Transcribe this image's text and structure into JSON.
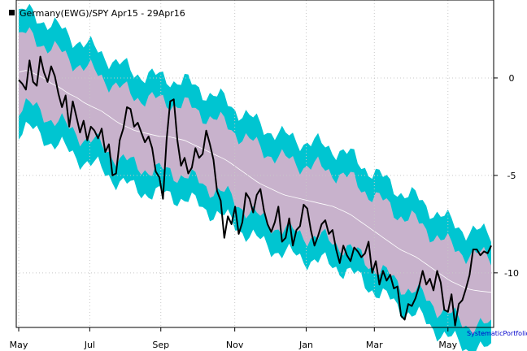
{
  "chart_data": {
    "type": "area",
    "title": "Germany(EWG)/SPY Apr15 - 29Apr16",
    "legend_position": "top-left",
    "credit": "SystematicPortfolio",
    "x_ticks": [
      "May",
      "Jul",
      "Sep",
      "Nov",
      "Jan",
      "Mar",
      "May"
    ],
    "x_tick_index": [
      0,
      19.7,
      39.4,
      59.9,
      79.7,
      98.6,
      119
    ],
    "y_ticks": [
      0,
      -5,
      -10
    ],
    "ylim": [
      -12.8,
      4
    ],
    "grid": true,
    "colors": {
      "outer_band": "#00c5d1",
      "inner_band": "#c8b2cc",
      "center_line": "#ffffff",
      "series": "#000000",
      "legend_marker": "#000000",
      "credit": "#0000cc"
    },
    "series": [
      {
        "name": "Germany(EWG)/SPY Apr15 - 29Apr16",
        "values": [
          -0.1,
          -0.3,
          -0.6,
          0.9,
          -0.2,
          -0.4,
          1.1,
          0.3,
          -0.2,
          0.6,
          0.1,
          -0.8,
          -1.5,
          -0.9,
          -2.5,
          -1.2,
          -2.0,
          -2.8,
          -2.2,
          -3.2,
          -2.5,
          -2.7,
          -3.1,
          -2.6,
          -3.8,
          -3.4,
          -5.0,
          -4.9,
          -3.2,
          -2.6,
          -1.5,
          -1.6,
          -2.5,
          -2.3,
          -2.8,
          -3.3,
          -3.0,
          -3.6,
          -4.8,
          -5.1,
          -6.2,
          -3.2,
          -1.2,
          -1.1,
          -3.2,
          -4.5,
          -4.1,
          -4.9,
          -4.6,
          -3.6,
          -4.1,
          -3.9,
          -2.7,
          -3.4,
          -4.2,
          -5.8,
          -6.3,
          -8.2,
          -7.1,
          -7.5,
          -6.6,
          -8.0,
          -7.4,
          -5.9,
          -6.2,
          -6.9,
          -6.0,
          -5.7,
          -6.8,
          -7.5,
          -7.9,
          -7.4,
          -6.6,
          -8.4,
          -8.2,
          -7.2,
          -8.6,
          -7.8,
          -7.6,
          -6.5,
          -6.7,
          -7.8,
          -8.6,
          -8.1,
          -7.5,
          -7.3,
          -8.0,
          -7.8,
          -8.8,
          -9.5,
          -8.6,
          -9.1,
          -9.4,
          -8.7,
          -8.9,
          -9.2,
          -9.0,
          -8.4,
          -10.0,
          -9.4,
          -10.6,
          -9.9,
          -10.4,
          -10.1,
          -10.8,
          -10.7,
          -12.2,
          -12.4,
          -11.6,
          -11.7,
          -11.3,
          -10.7,
          -9.9,
          -10.6,
          -10.3,
          -10.9,
          -9.9,
          -10.5,
          -11.9,
          -12.0,
          -11.1,
          -12.7,
          -11.6,
          -11.4,
          -10.8,
          -10.1,
          -8.8,
          -8.8,
          -9.1,
          -8.9,
          -9.0,
          -8.6
        ]
      }
    ],
    "band_center": [
      0.3,
      0.4,
      0.2,
      0.0,
      -0.3,
      -0.5,
      -0.8,
      -1.0,
      -1.3,
      -1.5,
      -1.7,
      -2.0,
      -2.3,
      -2.5,
      -2.7,
      -2.8,
      -2.9,
      -3.0,
      -3.0,
      -3.1,
      -3.2,
      -3.4,
      -3.6,
      -3.8,
      -4.0,
      -4.2,
      -4.5,
      -4.8,
      -5.1,
      -5.4,
      -5.6,
      -5.8,
      -6.0,
      -6.1,
      -6.2,
      -6.3,
      -6.4,
      -6.5,
      -6.6,
      -6.8,
      -7.0,
      -7.3,
      -7.6,
      -7.9,
      -8.2,
      -8.5,
      -8.8,
      -9.0,
      -9.2,
      -9.5,
      -9.8,
      -10.1,
      -10.4,
      -10.6,
      -10.8,
      -10.9,
      -10.95,
      -11.0
    ],
    "band_inner_halfwidth": 1.8,
    "band_outer_halfwidth": 3.0
  }
}
